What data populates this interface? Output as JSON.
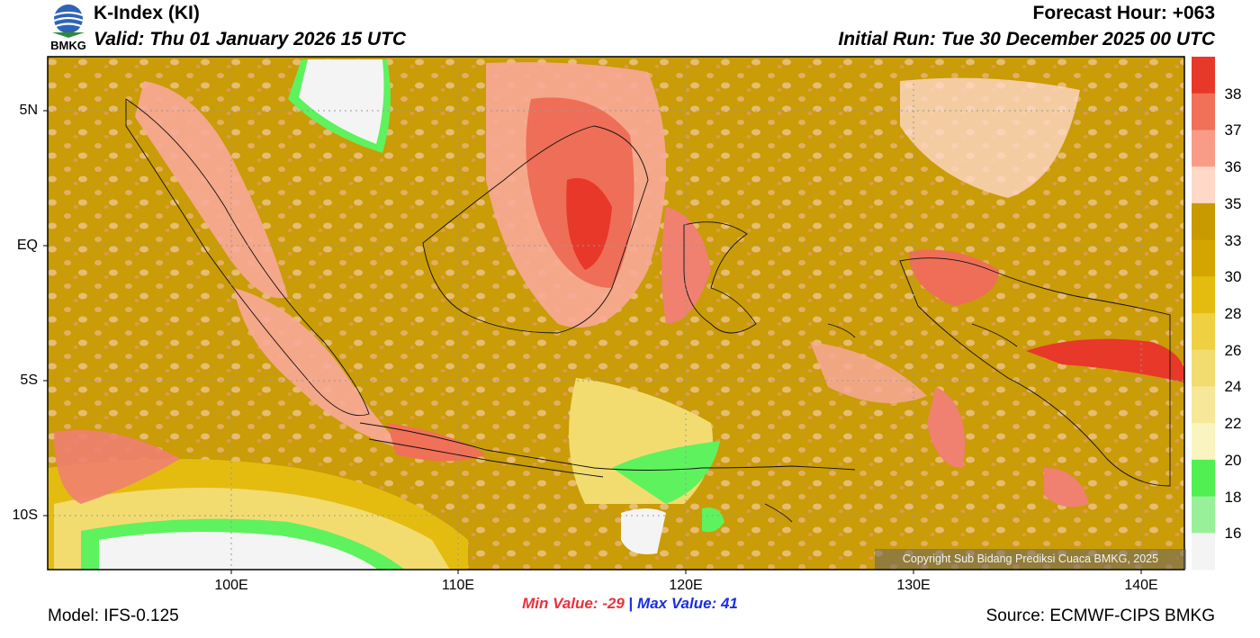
{
  "header": {
    "title": "K-Index (KI)",
    "valid": "Valid: Thu 01 January 2026 15 UTC",
    "forecast_hour": "Forecast Hour: +063",
    "initial_run": "Initial Run: Tue 30 December 2025 00 UTC",
    "logo_text": "BMKG"
  },
  "map": {
    "lat_labels": [
      "5N",
      "EQ",
      "5S",
      "10S"
    ],
    "lon_labels": [
      "100E",
      "110E",
      "120E",
      "130E",
      "140E"
    ],
    "copyright": "Copyright Sub Bidang Prediksi Cuaca BMKG, 2025"
  },
  "colorbar": {
    "labels": [
      "38",
      "37",
      "36",
      "35",
      "33",
      "30",
      "28",
      "26",
      "24",
      "22",
      "20",
      "18",
      "16"
    ],
    "colors": [
      "#e8382a",
      "#f07058",
      "#f89c88",
      "#ffd8c8",
      "#c89a00",
      "#d4a400",
      "#e4bc10",
      "#eed040",
      "#f2dc70",
      "#f6e898",
      "#faf4c0",
      "#50f050",
      "#98f098",
      "#f4f4f4"
    ]
  },
  "stats": {
    "min_label": "Min Value: -29",
    "sep": "|",
    "max_label": "Max Value:  41"
  },
  "footer": {
    "model": "Model: IFS-0.125",
    "source": "Source: ECMWF-CIPS BMKG"
  }
}
